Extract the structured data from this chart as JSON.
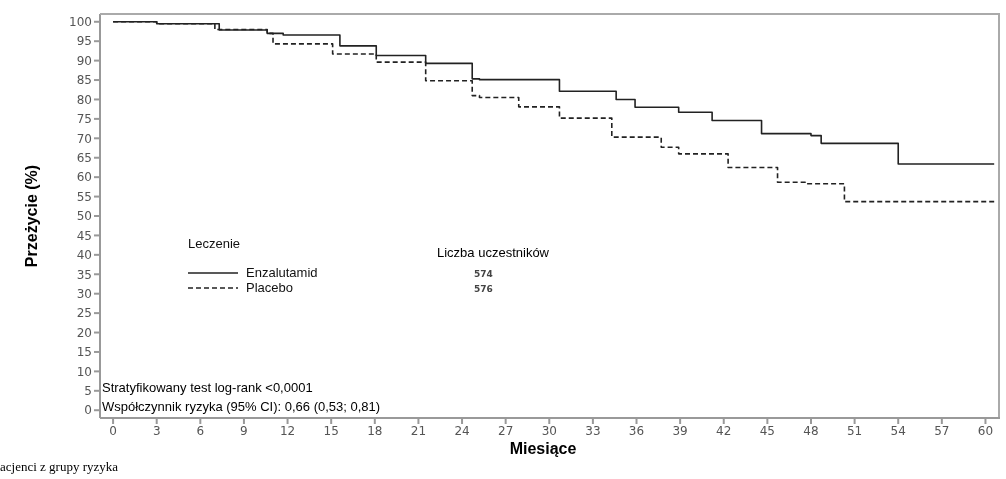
{
  "chart_data": {
    "type": "step",
    "xlabel": "Miesiące",
    "ylabel": "Przeżycie (%)",
    "legend_title": "Leczenie",
    "xlim": [
      -0.9,
      61
    ],
    "xticks": [
      0,
      3,
      6,
      9,
      12,
      15,
      18,
      21,
      24,
      27,
      30,
      33,
      36,
      39,
      42,
      45,
      48,
      51,
      54,
      57,
      60
    ],
    "ylim": [
      -2,
      102
    ],
    "yticks": [
      0,
      5,
      10,
      15,
      20,
      25,
      30,
      35,
      40,
      45,
      50,
      55,
      60,
      65,
      70,
      75,
      80,
      85,
      90,
      95,
      100
    ],
    "legend": "bottom left",
    "marker": "none",
    "series": [
      {
        "name": "Enzalutamid",
        "color": "#222222",
        "line_style": "solid",
        "x": [
          0,
          3,
          7.3,
          10.6,
          11.7,
          15.6,
          18.1,
          21.5,
          24.7,
          25.2,
          30.7,
          34.6,
          35.9,
          38.9,
          41.2,
          44.6,
          48,
          48.7,
          54,
          60.6
        ],
        "values": [
          100,
          99.5,
          97.9,
          97,
          96.6,
          93.8,
          91.3,
          89.3,
          85.3,
          85.1,
          82.1,
          80,
          78,
          76.7,
          74.6,
          71.2,
          70.7,
          68.7,
          63.4,
          63.4
        ]
      },
      {
        "name": "Placebo",
        "color": "#222222",
        "line_style": "dashed",
        "x": [
          0,
          3,
          7,
          10.6,
          11,
          15.1,
          18.1,
          21.5,
          24.7,
          25.2,
          27.9,
          30.7,
          34.3,
          37.7,
          38.9,
          42.3,
          45.7,
          47.6,
          50.3,
          60.6
        ],
        "values": [
          100,
          99.5,
          98,
          97,
          94.3,
          91.7,
          89.6,
          84.8,
          81,
          80.5,
          78.1,
          75.2,
          70.3,
          67.7,
          66,
          62.5,
          58.7,
          58.3,
          53.7,
          53.7
        ]
      }
    ],
    "annotations": [
      "Liczba uczestników",
      "574",
      "576",
      "Stratyfikowany test log-rank <0,0001",
      "Współczynnik ryzyka (95% CI): 0,66 (0,53; 0,81)",
      "acjenci z grupy ryzyka"
    ]
  }
}
